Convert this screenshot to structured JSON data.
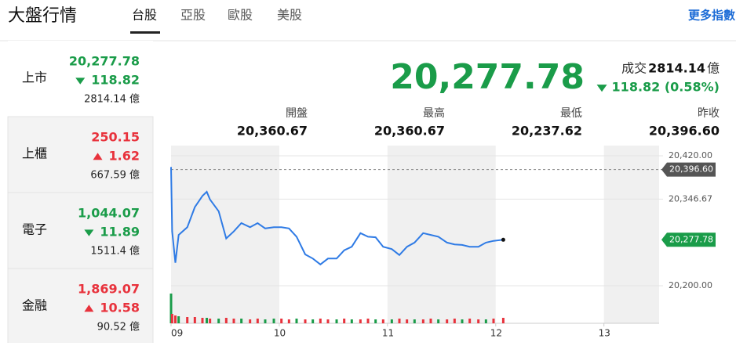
{
  "header": {
    "title": "大盤行情",
    "tabs": [
      "台股",
      "亞股",
      "歐股",
      "美股"
    ],
    "more": "更多指數"
  },
  "sidebar": [
    {
      "name": "上市",
      "value": "20,277.78",
      "change": "118.82",
      "direction": "down",
      "volume": "2814.14 億"
    },
    {
      "name": "上櫃",
      "value": "250.15",
      "change": "1.62",
      "direction": "up",
      "volume": "667.59 億"
    },
    {
      "name": "電子",
      "value": "1,044.07",
      "change": "11.89",
      "direction": "down",
      "volume": "1511.4 億"
    },
    {
      "name": "金融",
      "value": "1,869.07",
      "change": "10.58",
      "direction": "up",
      "volume": "90.52 億"
    }
  ],
  "quote": {
    "value": "20,277.78",
    "volume_label": "成交",
    "volume": "2814.14",
    "volume_unit": "億",
    "change": "118.82 (0.58%)",
    "direction": "down",
    "stats": [
      {
        "label": "開盤",
        "value": "20,360.67"
      },
      {
        "label": "最高",
        "value": "20,360.67"
      },
      {
        "label": "最低",
        "value": "20,237.62"
      },
      {
        "label": "昨收",
        "value": "20,396.60"
      }
    ]
  },
  "chart_data": {
    "type": "line",
    "x": [
      9.0,
      9.01,
      9.04,
      9.07,
      9.15,
      9.22,
      9.29,
      9.33,
      9.36,
      9.44,
      9.51,
      9.58,
      9.65,
      9.73,
      9.8,
      9.87,
      9.95,
      10.02,
      10.09,
      10.16,
      10.24,
      10.31,
      10.38,
      10.45,
      10.53,
      10.6,
      10.67,
      10.75,
      10.82,
      10.89,
      10.96,
      11.04,
      11.11,
      11.18,
      11.25,
      11.33,
      11.4,
      11.47,
      11.55,
      11.62,
      11.69,
      11.76,
      11.84,
      11.91,
      11.98,
      12.07
    ],
    "series": [
      {
        "color": "#2f7be5",
        "values": [
          20401,
          20292,
          20239,
          20286,
          20299,
          20333,
          20352,
          20359,
          20346,
          20326,
          20280,
          20292,
          20306,
          20299,
          20306,
          20297,
          20299,
          20299,
          20297,
          20283,
          20253,
          20246,
          20236,
          20246,
          20246,
          20260,
          20266,
          20289,
          20283,
          20282,
          20266,
          20262,
          20252,
          20266,
          20273,
          20289,
          20286,
          20283,
          20273,
          20270,
          20269,
          20266,
          20266,
          20273,
          20276,
          20277.78
        ]
      }
    ],
    "volume": {
      "values": [
        38,
        12,
        10,
        9,
        8,
        8,
        7,
        7,
        6,
        6,
        7,
        6,
        6,
        5,
        6,
        5,
        6,
        6,
        5,
        6,
        5,
        5,
        6,
        5,
        5,
        6,
        5,
        5,
        6,
        5,
        5,
        5,
        6,
        5,
        5,
        5,
        6,
        5,
        5,
        6,
        5,
        6,
        5,
        5,
        6,
        7
      ],
      "colors": [
        "#1a9c49",
        "#e8323c",
        "#e8323c",
        "#1a9c49",
        "#e8323c",
        "#e8323c",
        "#e8323c",
        "#1a9c49",
        "#e8323c",
        "#1a9c49",
        "#e8323c",
        "#e8323c",
        "#1a9c49",
        "#e8323c",
        "#e8323c",
        "#1a9c49",
        "#1a9c49",
        "#e8323c",
        "#e8323c",
        "#1a9c49",
        "#e8323c",
        "#1a9c49",
        "#e8323c",
        "#e8323c",
        "#1a9c49",
        "#e8323c",
        "#1a9c49",
        "#e8323c",
        "#e8323c",
        "#1a9c49",
        "#e8323c",
        "#1a9c49",
        "#e8323c",
        "#e8323c",
        "#1a9c49",
        "#e8323c",
        "#e8323c",
        "#1a9c49",
        "#e8323c",
        "#e8323c",
        "#1a9c49",
        "#e8323c",
        "#e8323c",
        "#1a9c49",
        "#e8323c",
        "#e8323c"
      ]
    },
    "xlim": [
      9,
      13.51
    ],
    "xticks": [
      {
        "value": 9,
        "label": "09"
      },
      10,
      11,
      12,
      13
    ],
    "ylim": [
      20136.4,
      20437.2
    ],
    "yticks": [
      {
        "value": 20420,
        "label": "20,420.00"
      },
      {
        "value": 20346.67,
        "label": "20,346.67"
      },
      {
        "value": 20200,
        "label": "20,200.00"
      }
    ],
    "reference": {
      "value": 20396.6,
      "label": "20,396.60",
      "color": "#555555"
    },
    "last_label": "20,277.78",
    "last_color": "#1a9c49",
    "grid": true
  }
}
